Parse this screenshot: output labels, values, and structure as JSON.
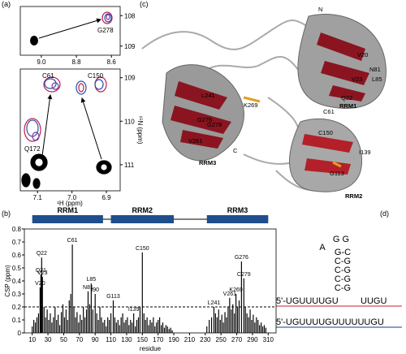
{
  "panel_labels": [
    "(a)",
    "(b)",
    "(c)",
    "(d)"
  ],
  "chart_data": [
    {
      "type": "contour",
      "xlim": [
        9.12,
        8.55
      ],
      "xticks": [
        {
          "value": 9,
          "label": "9.0"
        },
        {
          "value": 8.8,
          "label": "8.8"
        },
        {
          "value": 8.6,
          "label": "8.6"
        }
      ],
      "ylim": [
        107.7,
        109.3
      ],
      "yticks": [
        108,
        109
      ],
      "annotations": [
        "G278"
      ]
    },
    {
      "type": "contour",
      "xlim": [
        7.15,
        6.86
      ],
      "xticks": [
        7.1,
        {
          "value": 7,
          "label": "7.0"
        },
        6.9
      ],
      "ylim": [
        108.8,
        111.6
      ],
      "yticks": [
        109,
        110,
        111
      ],
      "xlabel": "¹H (ppm)",
      "ylabel": "¹⁵N (ppm)",
      "annotations": [
        "C61",
        "C150",
        "Q172"
      ]
    },
    {
      "type": "bar",
      "color": "#000000",
      "xlabel": "residue",
      "ylabel": "CSP (ppm)",
      "xlim": [
        0,
        320
      ],
      "xticks": [
        10,
        30,
        50,
        70,
        90,
        110,
        130,
        150,
        170,
        190,
        210,
        230,
        250,
        270,
        290,
        310
      ],
      "ylim": [
        0,
        0.8
      ],
      "yticks": [
        0,
        0.1,
        0.2,
        0.3,
        0.4,
        0.5,
        0.6,
        0.7,
        0.8
      ],
      "threshold": 0.2,
      "domains": [
        {
          "name": "RRM1",
          "start": 10,
          "end": 100,
          "color": "#1f4e8c"
        },
        {
          "name": "RRM2",
          "start": 110,
          "end": 190,
          "color": "#1f4e8c"
        },
        {
          "name": "RRM3",
          "start": 232,
          "end": 310,
          "color": "#1f4e8c"
        }
      ],
      "peak_labels": [
        "V20",
        "Q21",
        "Q22",
        "V23",
        "C61",
        "N81",
        "L85",
        "I90",
        "G113",
        "I139",
        "C150",
        "L241",
        "V261",
        "K269",
        "G276",
        "C279"
      ],
      "x": [
        10,
        12,
        14,
        16,
        18,
        20,
        21,
        22,
        23,
        25,
        27,
        29,
        31,
        33,
        35,
        37,
        39,
        41,
        43,
        45,
        47,
        49,
        51,
        53,
        55,
        57,
        59,
        61,
        63,
        65,
        67,
        69,
        71,
        73,
        75,
        77,
        79,
        81,
        83,
        85,
        87,
        90,
        92,
        94,
        96,
        98,
        100,
        102,
        104,
        106,
        108,
        110,
        113,
        115,
        117,
        119,
        121,
        123,
        125,
        127,
        129,
        131,
        133,
        135,
        137,
        139,
        141,
        143,
        145,
        147,
        150,
        152,
        154,
        156,
        158,
        160,
        162,
        164,
        166,
        168,
        170,
        172,
        174,
        176,
        178,
        180,
        182,
        184,
        186,
        188,
        232,
        235,
        238,
        241,
        243,
        245,
        247,
        249,
        251,
        253,
        255,
        257,
        259,
        261,
        263,
        265,
        267,
        269,
        271,
        273,
        276,
        279,
        281,
        283,
        285,
        287,
        289,
        291,
        293,
        295,
        297,
        299,
        301,
        303,
        305,
        307
      ],
      "values": [
        0.05,
        0.1,
        0.08,
        0.12,
        0.15,
        0.35,
        0.45,
        0.58,
        0.43,
        0.2,
        0.12,
        0.18,
        0.1,
        0.15,
        0.08,
        0.12,
        0.2,
        0.1,
        0.14,
        0.06,
        0.16,
        0.22,
        0.12,
        0.18,
        0.1,
        0.25,
        0.3,
        0.68,
        0.2,
        0.12,
        0.16,
        0.08,
        0.14,
        0.1,
        0.2,
        0.12,
        0.18,
        0.32,
        0.22,
        0.38,
        0.18,
        0.3,
        0.15,
        0.1,
        0.2,
        0.12,
        0.08,
        0.1,
        0.05,
        0.12,
        0.1,
        0.15,
        0.25,
        0.12,
        0.08,
        0.1,
        0.06,
        0.12,
        0.15,
        0.08,
        0.1,
        0.12,
        0.06,
        0.1,
        0.08,
        0.15,
        0.05,
        0.1,
        0.12,
        0.2,
        0.62,
        0.15,
        0.1,
        0.12,
        0.06,
        0.1,
        0.08,
        0.12,
        0.05,
        0.08,
        0.1,
        0.12,
        0.06,
        0.08,
        0.04,
        0.06,
        0.05,
        0.03,
        0.04,
        0.02,
        0.05,
        0.1,
        0.12,
        0.2,
        0.15,
        0.12,
        0.18,
        0.1,
        0.14,
        0.08,
        0.16,
        0.12,
        0.2,
        0.27,
        0.18,
        0.22,
        0.15,
        0.3,
        0.2,
        0.25,
        0.55,
        0.42,
        0.2,
        0.15,
        0.12,
        0.18,
        0.1,
        0.14,
        0.08,
        0.12,
        0.1,
        0.06,
        0.08,
        0.05,
        0.06,
        0.04
      ]
    }
  ],
  "structure": {
    "labels": [
      "N",
      "C61",
      "V20",
      "N81",
      "V23",
      "L85",
      "Q22",
      "RRM1",
      "L241",
      "G276",
      "K269",
      "G278",
      "V261",
      "C",
      "RRM3",
      "C150",
      "I139",
      "G113",
      "RRM2"
    ]
  },
  "rna": {
    "loop_left": "A",
    "loop_top": "G G",
    "pairs": [
      "G-C",
      "C-G",
      "C-G",
      "C-G",
      "C-G"
    ],
    "strand_5": "5'-UGUUUUGU",
    "strand_3": "UUGU",
    "control": "5'-UGUUUUGUUUUUUGU"
  }
}
